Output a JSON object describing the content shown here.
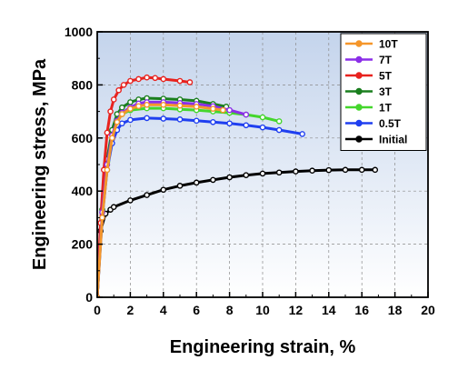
{
  "chart_data": {
    "type": "line",
    "title": "",
    "xlabel": "Engineering strain, %",
    "ylabel": "Engineering stress, MPa",
    "xlim": [
      0,
      20
    ],
    "ylim": [
      0,
      1000
    ],
    "xticks": [
      0,
      2,
      4,
      6,
      8,
      10,
      12,
      14,
      16,
      18,
      20
    ],
    "yticks": [
      0,
      200,
      400,
      600,
      800,
      1000
    ],
    "grid": true,
    "legend": "top-right",
    "series": [
      {
        "name": "10T",
        "color": "#f5962a",
        "x": [
          0,
          0.3,
          0.6,
          0.9,
          1.2,
          1.5,
          2,
          2.5,
          3,
          4,
          5,
          6,
          7,
          7.6
        ],
        "y": [
          0,
          300,
          480,
          600,
          660,
          690,
          710,
          720,
          725,
          725,
          722,
          718,
          710,
          705
        ]
      },
      {
        "name": "7T",
        "color": "#8b2fe8",
        "x": [
          0,
          0.3,
          0.6,
          0.9,
          1.2,
          1.5,
          2,
          2.5,
          3,
          4,
          5,
          6,
          7,
          8,
          9
        ],
        "y": [
          0,
          320,
          500,
          610,
          665,
          695,
          715,
          730,
          735,
          735,
          732,
          728,
          720,
          705,
          688
        ]
      },
      {
        "name": "5T",
        "color": "#e8221e",
        "x": [
          0,
          0.2,
          0.4,
          0.6,
          0.8,
          1,
          1.3,
          1.6,
          2,
          2.5,
          3,
          3.5,
          4,
          5,
          5.6
        ],
        "y": [
          0,
          280,
          480,
          620,
          700,
          745,
          780,
          800,
          815,
          822,
          828,
          826,
          822,
          815,
          810
        ]
      },
      {
        "name": "3T",
        "color": "#1a7f1e",
        "x": [
          0,
          0.3,
          0.6,
          0.9,
          1.2,
          1.5,
          2,
          2.5,
          3,
          4,
          5,
          6,
          7,
          7.8
        ],
        "y": [
          0,
          330,
          520,
          630,
          690,
          715,
          735,
          745,
          750,
          748,
          745,
          740,
          728,
          718
        ]
      },
      {
        "name": "1T",
        "color": "#44d62c",
        "x": [
          0,
          0.3,
          0.6,
          0.9,
          1.2,
          1.5,
          2,
          3,
          4,
          5,
          6,
          7,
          8,
          9,
          10,
          11
        ],
        "y": [
          0,
          320,
          510,
          620,
          670,
          690,
          705,
          712,
          712,
          708,
          705,
          700,
          695,
          688,
          678,
          663
        ]
      },
      {
        "name": "0.5T",
        "color": "#1f3ff0",
        "x": [
          0,
          0.3,
          0.6,
          0.9,
          1.2,
          1.5,
          2,
          3,
          4,
          5,
          6,
          7,
          8,
          9,
          10,
          11,
          12.4
        ],
        "y": [
          0,
          300,
          480,
          580,
          630,
          655,
          668,
          675,
          673,
          670,
          665,
          660,
          655,
          648,
          640,
          630,
          615
        ]
      },
      {
        "name": "Initial",
        "color": "#000000",
        "x": [
          0,
          0.2,
          0.5,
          0.8,
          1,
          2,
          3,
          4,
          5,
          6,
          7,
          8,
          9,
          10,
          11,
          12,
          13,
          14,
          15,
          16,
          16.8
        ],
        "y": [
          0,
          250,
          315,
          330,
          340,
          365,
          385,
          405,
          420,
          432,
          442,
          452,
          460,
          466,
          470,
          474,
          477,
          479,
          480,
          480,
          480
        ]
      }
    ]
  }
}
